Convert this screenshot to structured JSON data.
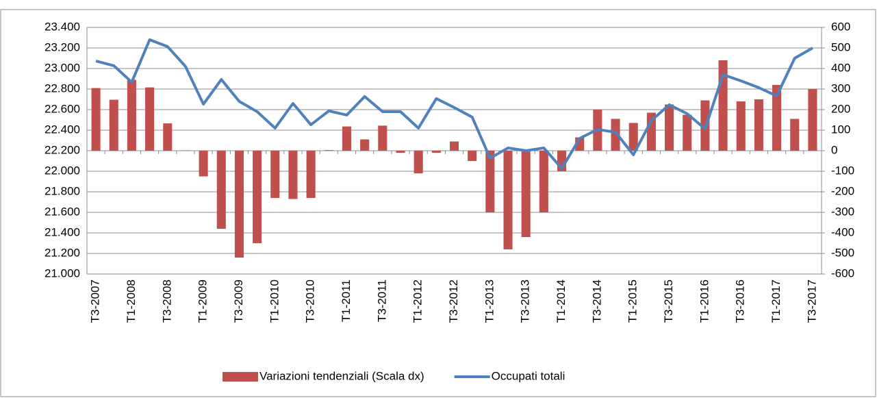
{
  "chart_data": {
    "type": "bar_line",
    "categories": [
      "T3-2007",
      null,
      "T1-2008",
      null,
      "T3-2008",
      null,
      "T1-2009",
      null,
      "T3-2009",
      null,
      "T1-2010",
      null,
      "T3-2010",
      null,
      "T1-2011",
      null,
      "T3-2011",
      null,
      "T1-2012",
      null,
      "T3-2012",
      null,
      "T1-2013",
      null,
      "T3-2013",
      null,
      "T1-2014",
      null,
      "T3-2014",
      null,
      "T1-2015",
      null,
      "T3-2015",
      null,
      "T1-2016",
      null,
      "T3-2016",
      null,
      "T1-2017",
      null,
      "T3-2017"
    ],
    "series": [
      {
        "name": "Variazioni tendenziali (Scala dx)",
        "type": "bar",
        "axis": "y2",
        "color": "#c0504d",
        "values": [
          305,
          248,
          345,
          308,
          133,
          2,
          -125,
          -380,
          -520,
          -450,
          -230,
          -235,
          -230,
          3,
          118,
          55,
          122,
          -10,
          -110,
          -10,
          45,
          -50,
          -300,
          -480,
          -420,
          -300,
          -100,
          65,
          200,
          155,
          135,
          185,
          225,
          175,
          245,
          440,
          240,
          250,
          320,
          155,
          300
        ]
      },
      {
        "name": "Occupati totali",
        "type": "line",
        "axis": "y",
        "color": "#4f81bd",
        "values": [
          23073,
          23027,
          22867,
          23280,
          23213,
          23020,
          22653,
          22893,
          22680,
          22580,
          22420,
          22660,
          22453,
          22587,
          22547,
          22727,
          22580,
          22580,
          22420,
          22707,
          22620,
          22527,
          22127,
          22227,
          22200,
          22227,
          22027,
          22320,
          22407,
          22380,
          22160,
          22493,
          22647,
          22560,
          22413,
          22940,
          22880,
          22813,
          22733,
          23100,
          23200
        ]
      }
    ],
    "ylim": [
      21000,
      23400
    ],
    "yticks": [
      {
        "value": 21000,
        "label": "21.000"
      },
      {
        "value": 21200,
        "label": "21.200"
      },
      {
        "value": 21400,
        "label": "21.400"
      },
      {
        "value": 21600,
        "label": "21.600"
      },
      {
        "value": 21800,
        "label": "21.800"
      },
      {
        "value": 22000,
        "label": "22.000"
      },
      {
        "value": 22200,
        "label": "22.200"
      },
      {
        "value": 22400,
        "label": "22.400"
      },
      {
        "value": 22600,
        "label": "22.600"
      },
      {
        "value": 22800,
        "label": "22.800"
      },
      {
        "value": 23000,
        "label": "23.000"
      },
      {
        "value": 23200,
        "label": "23.200"
      },
      {
        "value": 23400,
        "label": "23.400"
      }
    ],
    "y2lim": [
      -600,
      600
    ],
    "y2ticks": [
      -600,
      -500,
      -400,
      -300,
      -200,
      -100,
      0,
      100,
      200,
      300,
      400,
      500,
      600
    ],
    "grid": true,
    "legend": "bottom"
  }
}
